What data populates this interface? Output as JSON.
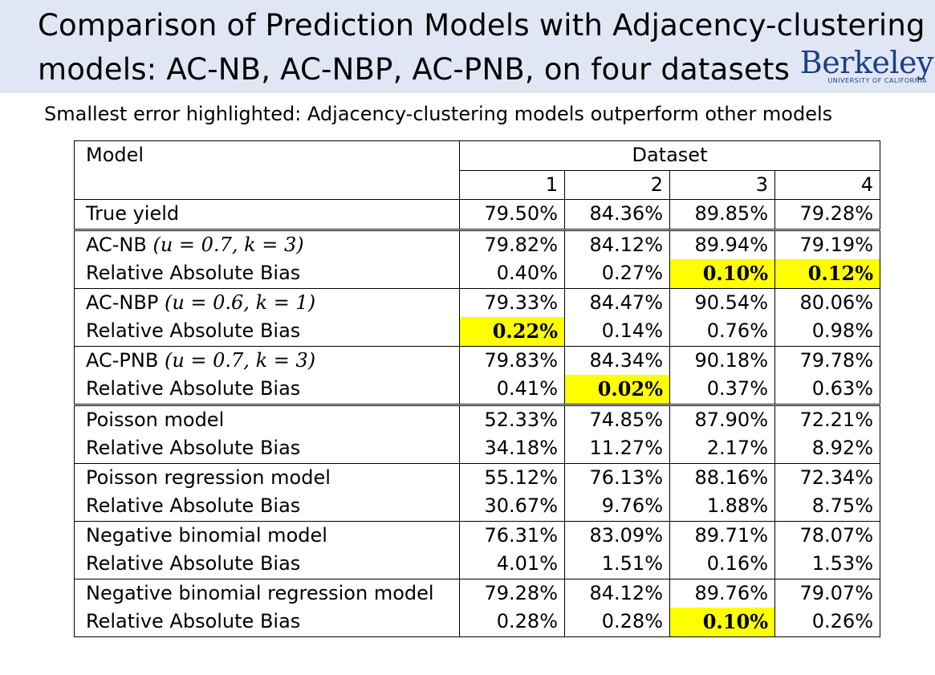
{
  "title_line1": "Comparison of Prediction Models with Adjacency-clustering",
  "title_line2": "models: AC-NB, AC-NBP, AC-PNB, on four datasets",
  "logo": {
    "word": "Berkeley",
    "sub": "UNIVERSITY OF CALIFORNIA"
  },
  "subtitle": "Smallest error highlighted: Adjacency-clustering models outperform other models",
  "table": {
    "model_header": "Model",
    "dataset_header": "Dataset",
    "dataset_ids": [
      "1",
      "2",
      "3",
      "4"
    ],
    "true_yield": {
      "label": "True yield",
      "values": [
        "79.50%",
        "84.36%",
        "89.85%",
        "79.28%"
      ]
    },
    "ac_models": [
      {
        "name": "AC-NB",
        "params": "(u = 0.7, k = 3)",
        "yield": [
          "79.82%",
          "84.12%",
          "89.94%",
          "79.19%"
        ],
        "bias_label": "Relative Absolute Bias",
        "bias": [
          "0.40%",
          "0.27%",
          "0.10%",
          "0.12%"
        ]
      },
      {
        "name": "AC-NBP",
        "params": "(u = 0.6, k = 1)",
        "yield": [
          "79.33%",
          "84.47%",
          "90.54%",
          "80.06%"
        ],
        "bias_label": "Relative Absolute Bias",
        "bias": [
          "0.22%",
          "0.14%",
          "0.76%",
          "0.98%"
        ]
      },
      {
        "name": "AC-PNB",
        "params": "(u = 0.7, k = 3)",
        "yield": [
          "79.83%",
          "84.34%",
          "90.18%",
          "79.78%"
        ],
        "bias_label": "Relative Absolute Bias",
        "bias": [
          "0.41%",
          "0.02%",
          "0.37%",
          "0.63%"
        ]
      }
    ],
    "other_models": [
      {
        "name": "Poisson model",
        "yield": [
          "52.33%",
          "74.85%",
          "87.90%",
          "72.21%"
        ],
        "bias_label": "Relative Absolute Bias",
        "bias": [
          "34.18%",
          "11.27%",
          "2.17%",
          "8.92%"
        ]
      },
      {
        "name": "Poisson regression model",
        "yield": [
          "55.12%",
          "76.13%",
          "88.16%",
          "72.34%"
        ],
        "bias_label": "Relative Absolute Bias",
        "bias": [
          "30.67%",
          "9.76%",
          "1.88%",
          "8.75%"
        ]
      },
      {
        "name": "Negative binomial model",
        "yield": [
          "76.31%",
          "83.09%",
          "89.71%",
          "78.07%"
        ],
        "bias_label": "Relative Absolute Bias",
        "bias": [
          "4.01%",
          "1.51%",
          "0.16%",
          "1.53%"
        ]
      },
      {
        "name": "Negative binomial regression model",
        "yield": [
          "79.28%",
          "84.12%",
          "89.76%",
          "79.07%"
        ],
        "bias_label": "Relative Absolute Bias",
        "bias": [
          "0.28%",
          "0.28%",
          "0.10%",
          "0.26%"
        ]
      }
    ],
    "highlight_color": "#ffff00"
  }
}
